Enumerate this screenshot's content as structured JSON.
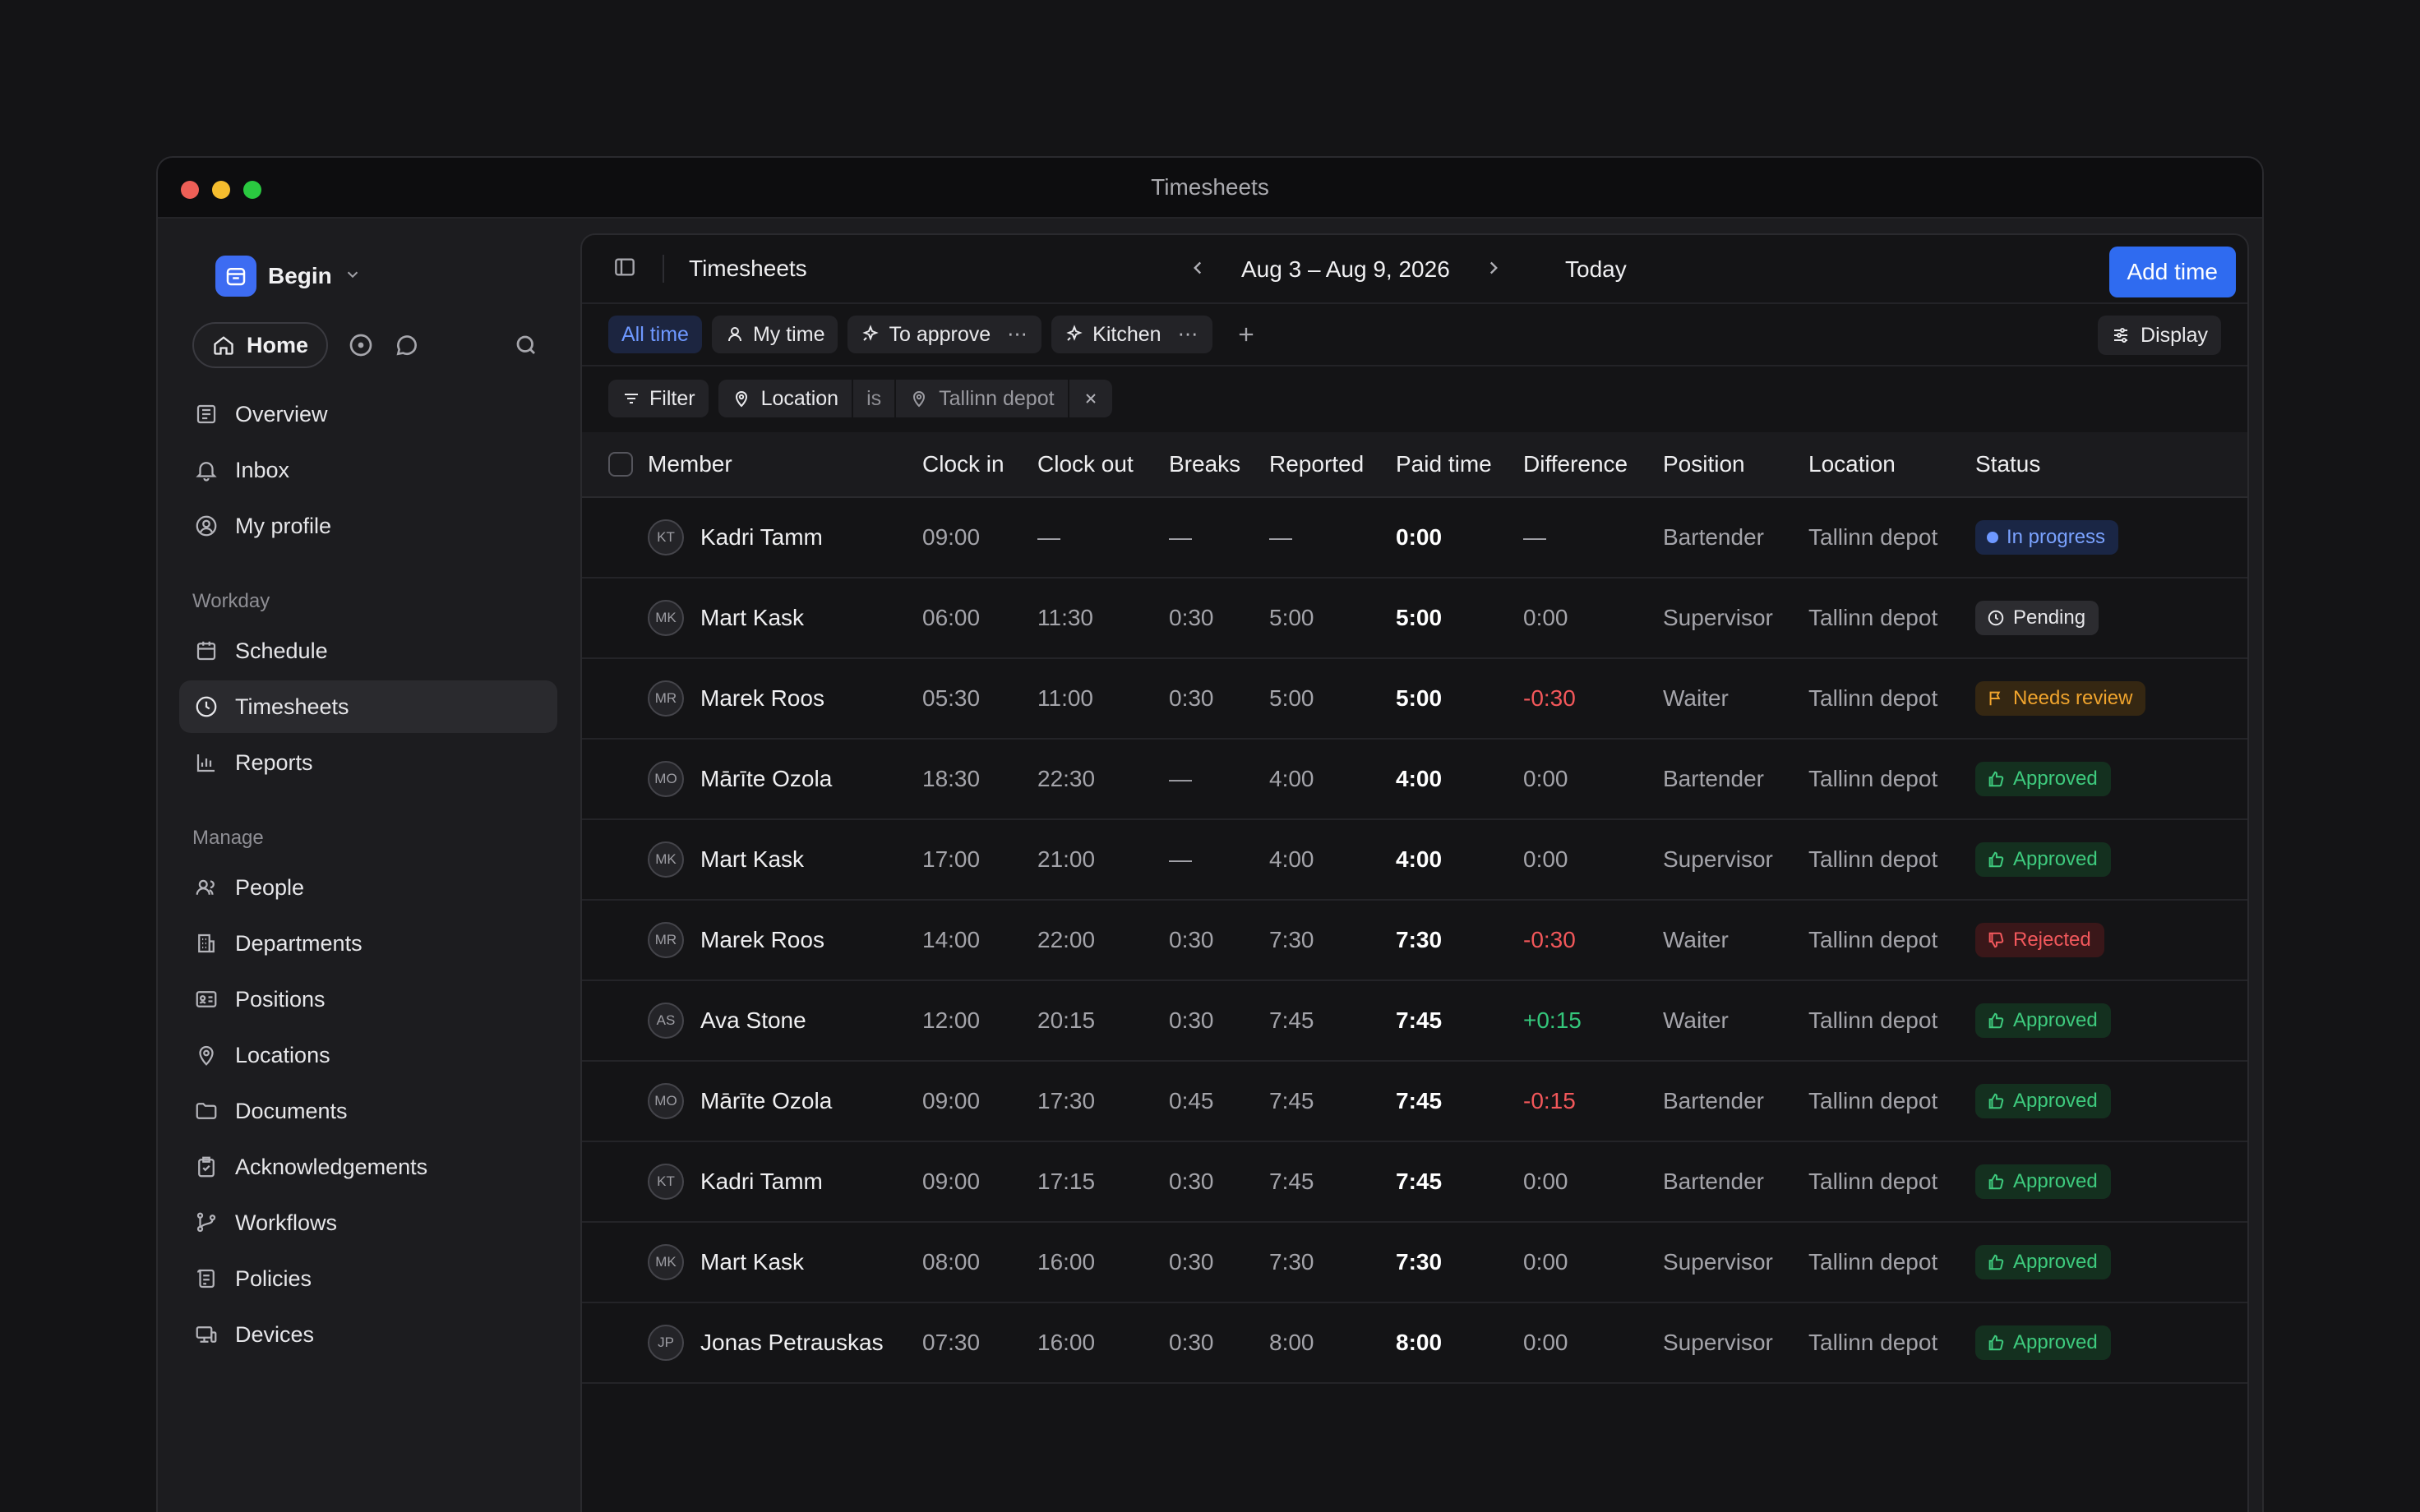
{
  "window": {
    "title": "Timesheets"
  },
  "sidebar": {
    "workspace": "Begin",
    "home_label": "Home",
    "top_items": [
      {
        "label": "Overview",
        "icon": "newspaper-icon"
      },
      {
        "label": "Inbox",
        "icon": "bell-icon"
      },
      {
        "label": "My profile",
        "icon": "user-circle-icon"
      }
    ],
    "workday_heading": "Workday",
    "workday_items": [
      {
        "label": "Schedule",
        "icon": "calendar-icon"
      },
      {
        "label": "Timesheets",
        "icon": "clock-icon",
        "active": true
      },
      {
        "label": "Reports",
        "icon": "bar-chart-icon"
      }
    ],
    "manage_heading": "Manage",
    "manage_items": [
      {
        "label": "People",
        "icon": "users-icon"
      },
      {
        "label": "Departments",
        "icon": "building-icon"
      },
      {
        "label": "Positions",
        "icon": "id-card-icon"
      },
      {
        "label": "Locations",
        "icon": "map-pin-icon"
      },
      {
        "label": "Documents",
        "icon": "folder-icon"
      },
      {
        "label": "Acknowledgements",
        "icon": "clipboard-check-icon"
      },
      {
        "label": "Workflows",
        "icon": "git-branch-icon"
      },
      {
        "label": "Policies",
        "icon": "scroll-icon"
      },
      {
        "label": "Devices",
        "icon": "devices-icon"
      }
    ]
  },
  "header": {
    "title": "Timesheets",
    "date_range": "Aug 3 – Aug 9, 2026",
    "today_label": "Today",
    "add_time_label": "Add time"
  },
  "views": {
    "tabs": [
      {
        "label": "All time",
        "active": true
      },
      {
        "label": "My time"
      },
      {
        "label": "To approve"
      },
      {
        "label": "Kitchen"
      }
    ],
    "display_label": "Display"
  },
  "filters": {
    "filter_label": "Filter",
    "field": "Location",
    "operator": "is",
    "value": "Tallinn depot"
  },
  "table": {
    "columns": [
      "Member",
      "Clock in",
      "Clock out",
      "Breaks",
      "Reported",
      "Paid time",
      "Difference",
      "Position",
      "Location",
      "Status"
    ],
    "rows": [
      {
        "initials": "KT",
        "member": "Kadri Tamm",
        "clock_in": "09:00",
        "clock_out": "—",
        "breaks": "—",
        "reported": "—",
        "paid": "0:00",
        "difference": "—",
        "diff_type": "none",
        "position": "Bartender",
        "location": "Tallinn depot",
        "status": "In progress",
        "status_type": "inprogress"
      },
      {
        "initials": "MK",
        "member": "Mart Kask",
        "clock_in": "06:00",
        "clock_out": "11:30",
        "breaks": "0:30",
        "reported": "5:00",
        "paid": "5:00",
        "difference": "0:00",
        "diff_type": "none",
        "position": "Supervisor",
        "location": "Tallinn depot",
        "status": "Pending",
        "status_type": "pending"
      },
      {
        "initials": "MR",
        "member": "Marek Roos",
        "clock_in": "05:30",
        "clock_out": "11:00",
        "breaks": "0:30",
        "reported": "5:00",
        "paid": "5:00",
        "difference": "-0:30",
        "diff_type": "neg",
        "position": "Waiter",
        "location": "Tallinn depot",
        "status": "Needs review",
        "status_type": "review"
      },
      {
        "initials": "MO",
        "member": "Mārīte Ozola",
        "clock_in": "18:30",
        "clock_out": "22:30",
        "breaks": "—",
        "reported": "4:00",
        "paid": "4:00",
        "difference": "0:00",
        "diff_type": "none",
        "position": "Bartender",
        "location": "Tallinn depot",
        "status": "Approved",
        "status_type": "approved"
      },
      {
        "initials": "MK",
        "member": "Mart Kask",
        "clock_in": "17:00",
        "clock_out": "21:00",
        "breaks": "—",
        "reported": "4:00",
        "paid": "4:00",
        "difference": "0:00",
        "diff_type": "none",
        "position": "Supervisor",
        "location": "Tallinn depot",
        "status": "Approved",
        "status_type": "approved"
      },
      {
        "initials": "MR",
        "member": "Marek Roos",
        "clock_in": "14:00",
        "clock_out": "22:00",
        "breaks": "0:30",
        "reported": "7:30",
        "paid": "7:30",
        "difference": "-0:30",
        "diff_type": "neg",
        "position": "Waiter",
        "location": "Tallinn depot",
        "status": "Rejected",
        "status_type": "rejected"
      },
      {
        "initials": "AS",
        "member": "Ava Stone",
        "clock_in": "12:00",
        "clock_out": "20:15",
        "breaks": "0:30",
        "reported": "7:45",
        "paid": "7:45",
        "difference": "+0:15",
        "diff_type": "pos",
        "position": "Waiter",
        "location": "Tallinn depot",
        "status": "Approved",
        "status_type": "approved"
      },
      {
        "initials": "MO",
        "member": "Mārīte Ozola",
        "clock_in": "09:00",
        "clock_out": "17:30",
        "breaks": "0:45",
        "reported": "7:45",
        "paid": "7:45",
        "difference": "-0:15",
        "diff_type": "neg",
        "position": "Bartender",
        "location": "Tallinn depot",
        "status": "Approved",
        "status_type": "approved"
      },
      {
        "initials": "KT",
        "member": "Kadri Tamm",
        "clock_in": "09:00",
        "clock_out": "17:15",
        "breaks": "0:30",
        "reported": "7:45",
        "paid": "7:45",
        "difference": "0:00",
        "diff_type": "none",
        "position": "Bartender",
        "location": "Tallinn depot",
        "status": "Approved",
        "status_type": "approved"
      },
      {
        "initials": "MK",
        "member": "Mart Kask",
        "clock_in": "08:00",
        "clock_out": "16:00",
        "breaks": "0:30",
        "reported": "7:30",
        "paid": "7:30",
        "difference": "0:00",
        "diff_type": "none",
        "position": "Supervisor",
        "location": "Tallinn depot",
        "status": "Approved",
        "status_type": "approved"
      },
      {
        "initials": "JP",
        "member": "Jonas Petrauskas",
        "clock_in": "07:30",
        "clock_out": "16:00",
        "breaks": "0:30",
        "reported": "8:00",
        "paid": "8:00",
        "difference": "0:00",
        "diff_type": "none",
        "position": "Supervisor",
        "location": "Tallinn depot",
        "status": "Approved",
        "status_type": "approved"
      }
    ]
  },
  "colors": {
    "accent": "#2f6bf0",
    "approved": "#3ecb7e",
    "rejected": "#f2585c",
    "review": "#f0a42d",
    "in_progress": "#7aa2ff"
  }
}
